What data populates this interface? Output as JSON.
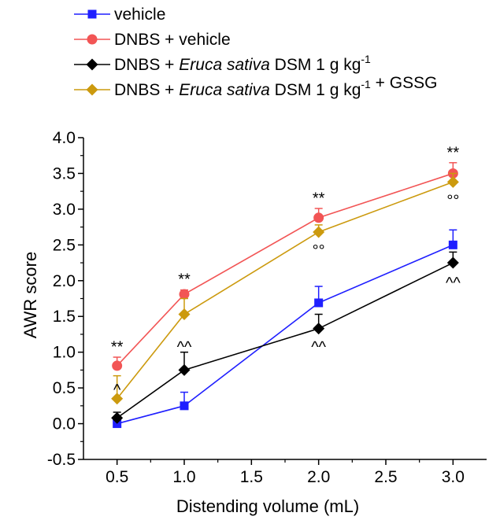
{
  "chart_data": {
    "type": "line",
    "xlabel": "Distending volume (mL)",
    "ylabel": "AWR score",
    "xlim": [
      0.25,
      3.25
    ],
    "ylim": [
      -0.5,
      4.0
    ],
    "xticks": [
      0.5,
      1.0,
      1.5,
      2.0,
      2.5,
      3.0
    ],
    "xtick_labels": [
      "0.5",
      "1.0",
      "1.5",
      "2.0",
      "2.5",
      "3.0"
    ],
    "yticks": [
      -0.5,
      0.0,
      0.5,
      1.0,
      1.5,
      2.0,
      2.5,
      3.0,
      3.5,
      4.0
    ],
    "ytick_labels": [
      "-0.5",
      "0.0",
      "0.5",
      "1.0",
      "1.5",
      "2.0",
      "2.5",
      "3.0",
      "3.5",
      "4.0"
    ],
    "grid": false,
    "legend_position": "top-left, above plot",
    "series": [
      {
        "name": "vehicle",
        "legend_parts": [
          {
            "text": "vehicle"
          }
        ],
        "color": "#1f1fff",
        "marker": "square",
        "x": [
          0.5,
          1.0,
          2.0,
          3.0
        ],
        "values": [
          0.0,
          0.25,
          1.69,
          2.5
        ],
        "errors": [
          0.02,
          0.19,
          0.23,
          0.21
        ]
      },
      {
        "name": "DNBS + vehicle",
        "legend_parts": [
          {
            "text": "DNBS + vehicle"
          }
        ],
        "color": "#f25555",
        "marker": "circle",
        "x": [
          0.5,
          1.0,
          2.0,
          3.0
        ],
        "values": [
          0.81,
          1.81,
          2.88,
          3.5
        ],
        "errors": [
          0.12,
          0.06,
          0.13,
          0.15
        ]
      },
      {
        "name": "DNBS + Eruca sativa DSM 1 g kg-1",
        "legend_parts": [
          {
            "text": "DNBS + "
          },
          {
            "text": "Eruca sativa",
            "italic": true
          },
          {
            "text": " DSM 1 g kg"
          },
          {
            "text": "-1",
            "sup": true
          }
        ],
        "color": "#000000",
        "marker": "diamond",
        "x": [
          0.5,
          1.0,
          2.0,
          3.0
        ],
        "values": [
          0.08,
          0.75,
          1.33,
          2.25
        ],
        "errors": [
          0.08,
          0.25,
          0.2,
          0.15
        ]
      },
      {
        "name": "DNBS + Eruca sativa DSM 1 g kg-1 + GSSG",
        "legend_parts": [
          {
            "text": "DNBS + "
          },
          {
            "text": "Eruca sativa",
            "italic": true
          },
          {
            "text": " DSM 1 g kg"
          },
          {
            "text": "-1",
            "sup": true
          },
          {
            "text": " + GSSG"
          }
        ],
        "color": "#cc9a0e",
        "marker": "diamond",
        "x": [
          0.5,
          1.0,
          2.0,
          3.0
        ],
        "values": [
          0.35,
          1.53,
          2.68,
          3.38
        ],
        "errors": [
          0.32,
          0.22,
          0.1,
          0.12
        ]
      }
    ],
    "annotations": [
      {
        "text": "**",
        "x": 0.5,
        "y": 1.0
      },
      {
        "text": "**",
        "x": 1.0,
        "y": 1.95
      },
      {
        "text": "**",
        "x": 2.0,
        "y": 3.08
      },
      {
        "text": "**",
        "x": 3.0,
        "y": 3.72
      },
      {
        "text": "^",
        "x": 0.5,
        "y": 0.4
      },
      {
        "text": "^^",
        "x": 1.0,
        "y": 1.0
      },
      {
        "text": "^^",
        "x": 2.0,
        "y": 1.0
      },
      {
        "text": "^^",
        "x": 3.0,
        "y": 1.9
      },
      {
        "text": "°°",
        "x": 2.0,
        "y": 2.35
      },
      {
        "text": "°°",
        "x": 3.0,
        "y": 3.05
      }
    ]
  }
}
